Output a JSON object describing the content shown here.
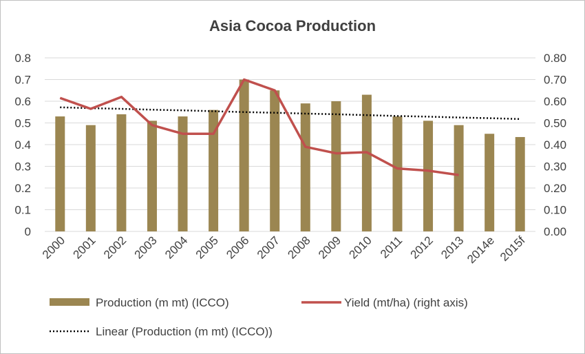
{
  "chart_data": {
    "type": "bar",
    "title": "Asia Cocoa Production",
    "categories": [
      "2000",
      "2001",
      "2002",
      "2003",
      "2004",
      "2005",
      "2006",
      "2007",
      "2008",
      "2009",
      "2010",
      "2011",
      "2012",
      "2013",
      "2014e",
      "2015f"
    ],
    "series": [
      {
        "name": "Production (m mt) (ICCO)",
        "type": "bar",
        "axis": "left",
        "values": [
          0.53,
          0.49,
          0.54,
          0.51,
          0.53,
          0.56,
          0.7,
          0.65,
          0.59,
          0.6,
          0.63,
          0.53,
          0.51,
          0.49,
          0.45,
          0.435
        ]
      },
      {
        "name": "Yield (mt/ha) (right axis)",
        "type": "line",
        "axis": "right",
        "values": [
          0.615,
          0.565,
          0.62,
          0.49,
          0.45,
          0.45,
          0.7,
          0.65,
          0.39,
          0.36,
          0.365,
          0.29,
          0.28,
          0.26,
          null,
          null
        ]
      },
      {
        "name": "Linear (Production (m mt) (ICCO))",
        "type": "trendline",
        "axis": "left",
        "values": [
          0.572,
          0.568,
          0.565,
          0.561,
          0.558,
          0.554,
          0.55,
          0.547,
          0.543,
          0.54,
          0.536,
          0.532,
          0.529,
          0.525,
          0.522,
          0.518
        ]
      }
    ],
    "y_left": {
      "range": [
        0,
        0.8
      ],
      "ticks": [
        "0",
        "0.1",
        "0.2",
        "0.3",
        "0.4",
        "0.5",
        "0.6",
        "0.7",
        "0.8"
      ]
    },
    "y_right": {
      "range": [
        0,
        0.8
      ],
      "ticks": [
        "0.00",
        "0.10",
        "0.20",
        "0.30",
        "0.40",
        "0.50",
        "0.60",
        "0.70",
        "0.80"
      ]
    },
    "grid": true,
    "legend_position": "bottom",
    "colors": {
      "bar": "#9b8651",
      "line": "#c0504d",
      "trend": "#000000",
      "grid": "#d9d9d9",
      "text": "#404040"
    }
  }
}
